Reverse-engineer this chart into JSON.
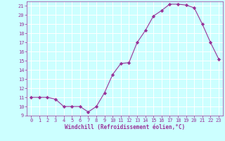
{
  "x": [
    0,
    1,
    2,
    3,
    4,
    5,
    6,
    7,
    8,
    9,
    10,
    11,
    12,
    13,
    14,
    15,
    16,
    17,
    18,
    19,
    20,
    21,
    22,
    23
  ],
  "y": [
    11,
    11,
    11,
    10.8,
    10,
    10,
    10,
    9.4,
    10,
    11.5,
    13.5,
    14.7,
    14.8,
    17,
    18.3,
    19.9,
    20.5,
    21.2,
    21.2,
    21.1,
    20.8,
    19,
    17,
    15.2
  ],
  "line_color": "#993399",
  "marker": "D",
  "markersize": 2.2,
  "bg_color": "#ccffff",
  "grid_color": "#ffffff",
  "xlabel": "Windchill (Refroidissement éolien,°C)",
  "xlabel_color": "#993399",
  "tick_color": "#993399",
  "spine_color": "#993399",
  "ylim": [
    9,
    21.5
  ],
  "xlim": [
    -0.5,
    23.5
  ],
  "yticks": [
    9,
    10,
    11,
    12,
    13,
    14,
    15,
    16,
    17,
    18,
    19,
    20,
    21
  ],
  "xticks": [
    0,
    1,
    2,
    3,
    4,
    5,
    6,
    7,
    8,
    9,
    10,
    11,
    12,
    13,
    14,
    15,
    16,
    17,
    18,
    19,
    20,
    21,
    22,
    23
  ],
  "tick_fontsize": 5.0,
  "xlabel_fontsize": 5.5,
  "linewidth": 0.8
}
